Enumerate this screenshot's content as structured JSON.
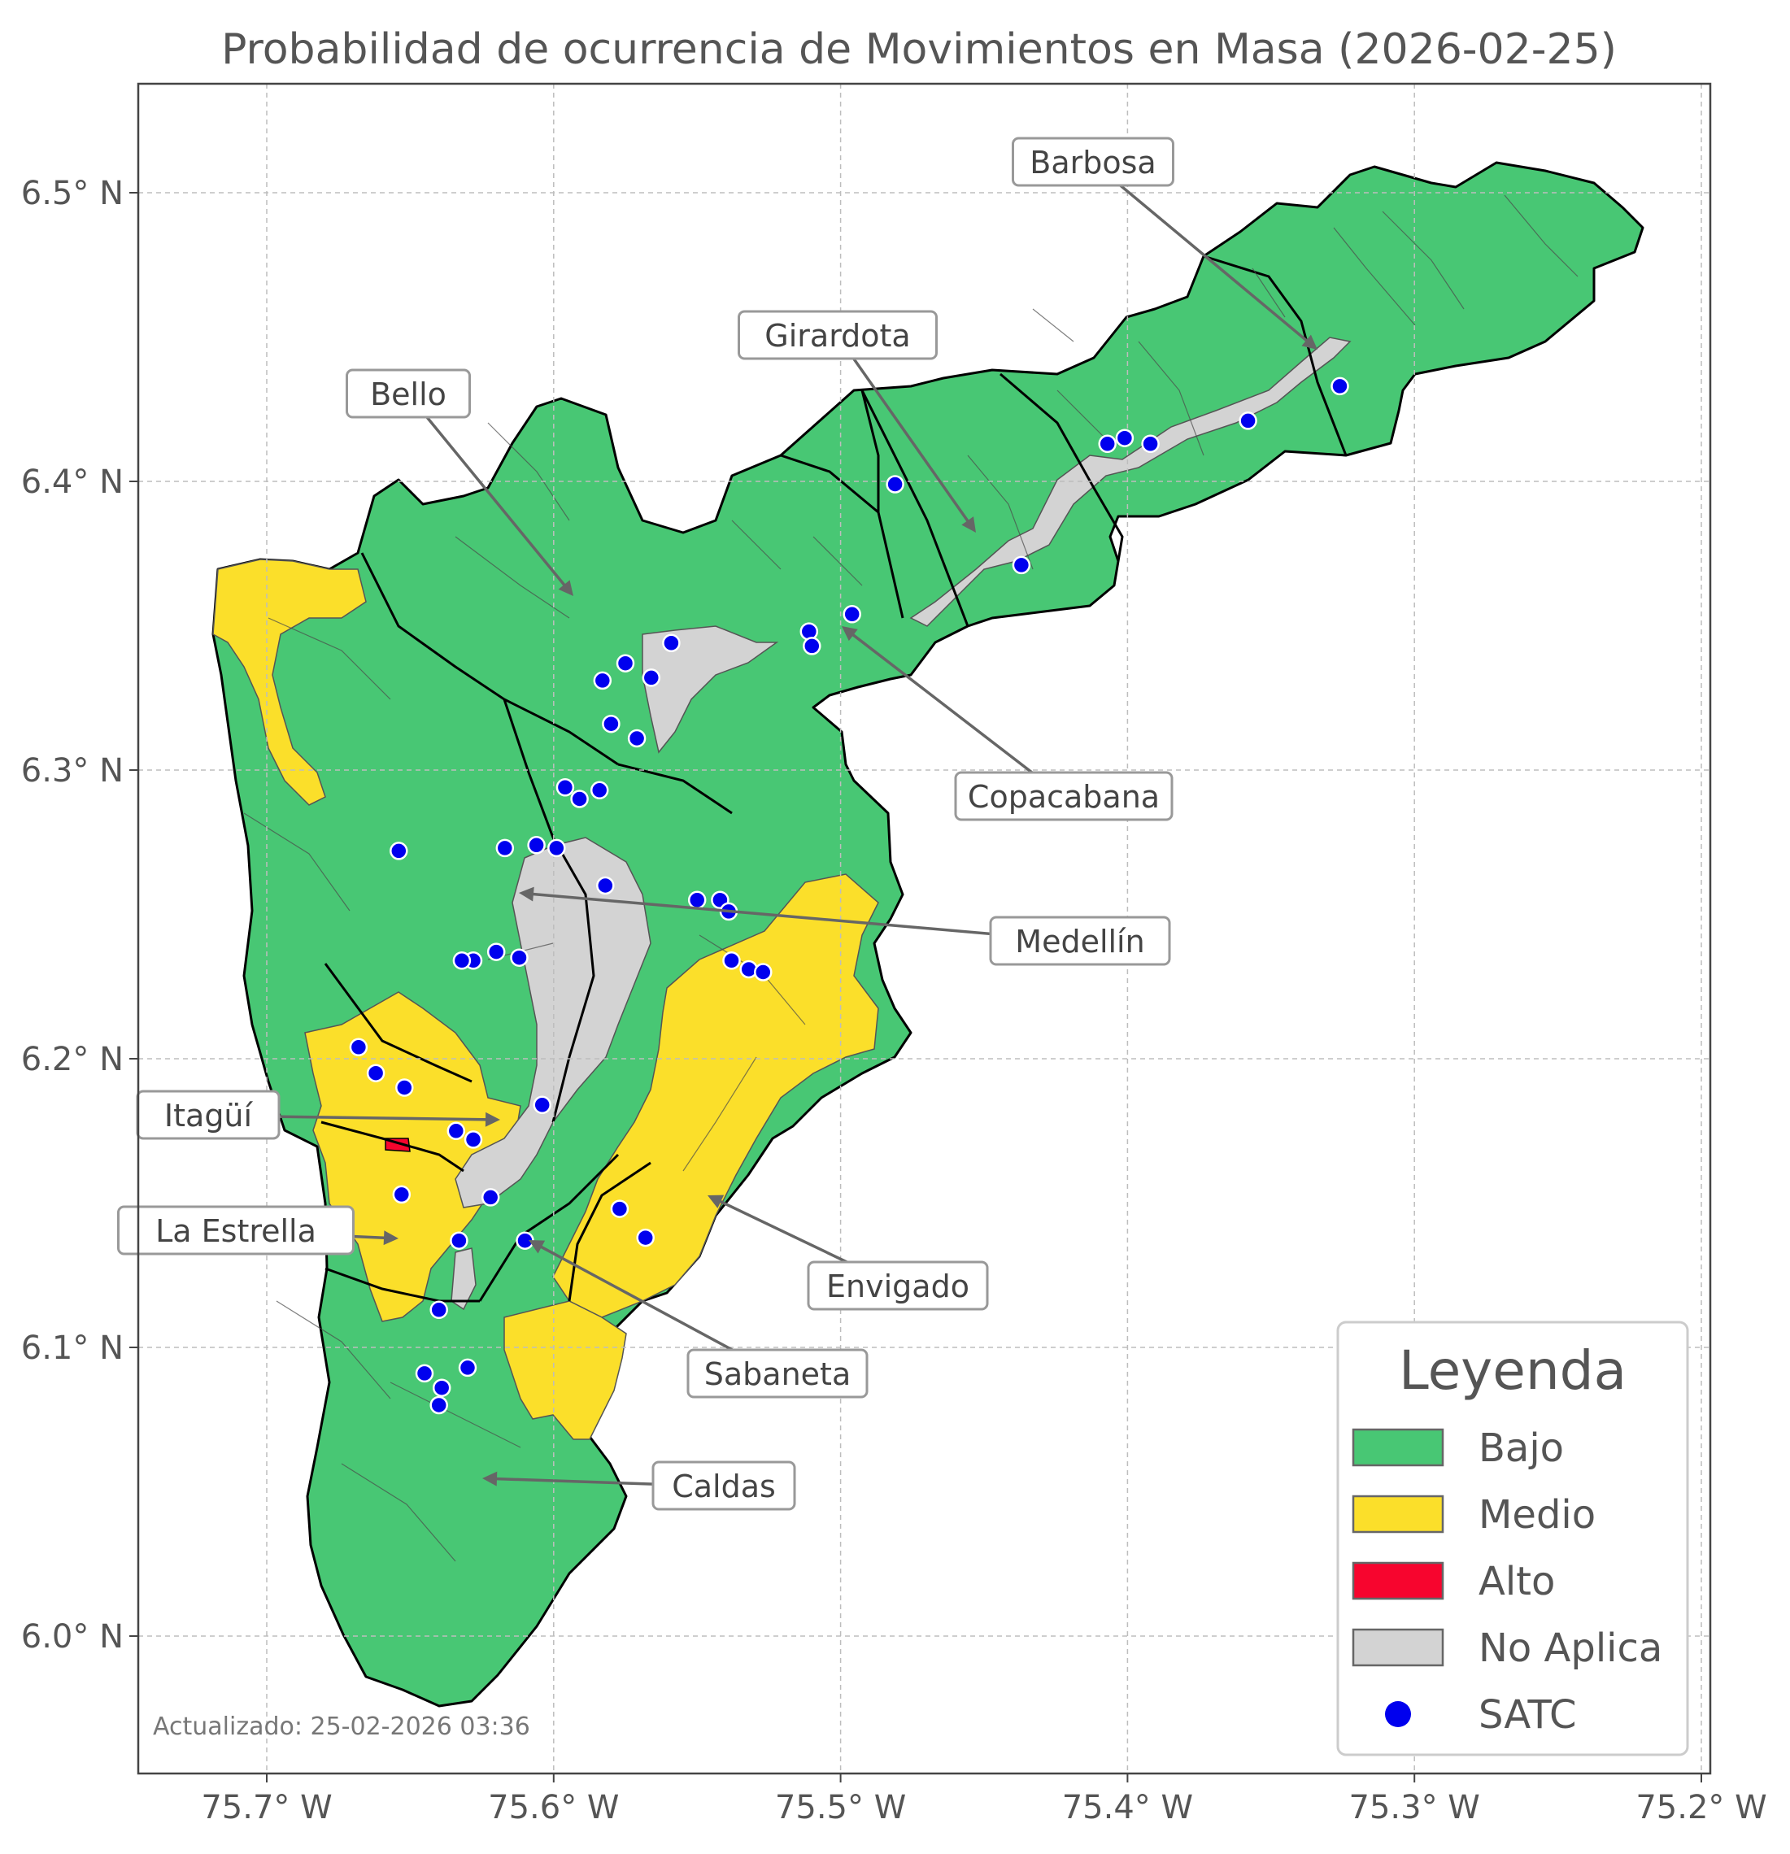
{
  "title": "Probabilidad de ocurrencia de Movimientos en Masa (2026-02-25)",
  "axes": {
    "x_ticks": [
      "75.7° W",
      "75.6° W",
      "75.5° W",
      "75.4° W",
      "75.3° W",
      "75.2° W"
    ],
    "y_ticks": [
      "6.5° N",
      "6.4° N",
      "6.3° N",
      "6.2° N",
      "6.1° N",
      "6.0° N"
    ],
    "grid": true
  },
  "colors": {
    "bajo": "#48c774",
    "medio": "#fbdf2a",
    "alto": "#f7052e",
    "no_aplica": "#d3d3d3",
    "satc": "#0000ee",
    "frame": "#444444"
  },
  "municipalities": [
    {
      "name": "Barbosa"
    },
    {
      "name": "Girardota"
    },
    {
      "name": "Bello"
    },
    {
      "name": "Copacabana"
    },
    {
      "name": "Medellín"
    },
    {
      "name": "Itagüí"
    },
    {
      "name": "La Estrella"
    },
    {
      "name": "Envigado"
    },
    {
      "name": "Sabaneta"
    },
    {
      "name": "Caldas"
    }
  ],
  "legend": {
    "title": "Leyenda",
    "placement": "bottom-right",
    "items": [
      {
        "label": "Bajo",
        "kind": "patch",
        "color": "#48c774"
      },
      {
        "label": "Medio",
        "kind": "patch",
        "color": "#fbdf2a"
      },
      {
        "label": "Alto",
        "kind": "patch",
        "color": "#f7052e"
      },
      {
        "label": "No Aplica",
        "kind": "patch",
        "color": "#d3d3d3"
      },
      {
        "label": "SATC",
        "kind": "marker",
        "color": "#0000ee"
      }
    ]
  },
  "satc_stations": [
    {
      "lon": -75.326,
      "lat": 6.433
    },
    {
      "lon": -75.358,
      "lat": 6.421
    },
    {
      "lon": -75.392,
      "lat": 6.413
    },
    {
      "lon": -75.401,
      "lat": 6.415
    },
    {
      "lon": -75.407,
      "lat": 6.413
    },
    {
      "lon": -75.481,
      "lat": 6.399
    },
    {
      "lon": -75.437,
      "lat": 6.371
    },
    {
      "lon": -75.496,
      "lat": 6.354
    },
    {
      "lon": -75.511,
      "lat": 6.348
    },
    {
      "lon": -75.51,
      "lat": 6.343
    },
    {
      "lon": -75.559,
      "lat": 6.344
    },
    {
      "lon": -75.566,
      "lat": 6.332
    },
    {
      "lon": -75.575,
      "lat": 6.337
    },
    {
      "lon": -75.583,
      "lat": 6.331
    },
    {
      "lon": -75.58,
      "lat": 6.316
    },
    {
      "lon": -75.571,
      "lat": 6.311
    },
    {
      "lon": -75.596,
      "lat": 6.294
    },
    {
      "lon": -75.591,
      "lat": 6.29
    },
    {
      "lon": -75.584,
      "lat": 6.293
    },
    {
      "lon": -75.599,
      "lat": 6.273
    },
    {
      "lon": -75.606,
      "lat": 6.274
    },
    {
      "lon": -75.617,
      "lat": 6.273
    },
    {
      "lon": -75.654,
      "lat": 6.272
    },
    {
      "lon": -75.582,
      "lat": 6.26
    },
    {
      "lon": -75.55,
      "lat": 6.255
    },
    {
      "lon": -75.542,
      "lat": 6.255
    },
    {
      "lon": -75.539,
      "lat": 6.251
    },
    {
      "lon": -75.538,
      "lat": 6.234
    },
    {
      "lon": -75.532,
      "lat": 6.231
    },
    {
      "lon": -75.527,
      "lat": 6.23
    },
    {
      "lon": -75.62,
      "lat": 6.237
    },
    {
      "lon": -75.612,
      "lat": 6.235
    },
    {
      "lon": -75.628,
      "lat": 6.234
    },
    {
      "lon": -75.632,
      "lat": 6.234
    },
    {
      "lon": -75.668,
      "lat": 6.204
    },
    {
      "lon": -75.662,
      "lat": 6.195
    },
    {
      "lon": -75.652,
      "lat": 6.19
    },
    {
      "lon": -75.604,
      "lat": 6.184
    },
    {
      "lon": -75.634,
      "lat": 6.175
    },
    {
      "lon": -75.628,
      "lat": 6.172
    },
    {
      "lon": -75.653,
      "lat": 6.153
    },
    {
      "lon": -75.622,
      "lat": 6.152
    },
    {
      "lon": -75.577,
      "lat": 6.148
    },
    {
      "lon": -75.568,
      "lat": 6.138
    },
    {
      "lon": -75.61,
      "lat": 6.137
    },
    {
      "lon": -75.633,
      "lat": 6.137
    },
    {
      "lon": -75.64,
      "lat": 6.113
    },
    {
      "lon": -75.63,
      "lat": 6.093
    },
    {
      "lon": -75.645,
      "lat": 6.091
    },
    {
      "lon": -75.639,
      "lat": 6.086
    },
    {
      "lon": -75.64,
      "lat": 6.08
    }
  ],
  "footer": "Actualizado: 25-02-2026 03:36"
}
